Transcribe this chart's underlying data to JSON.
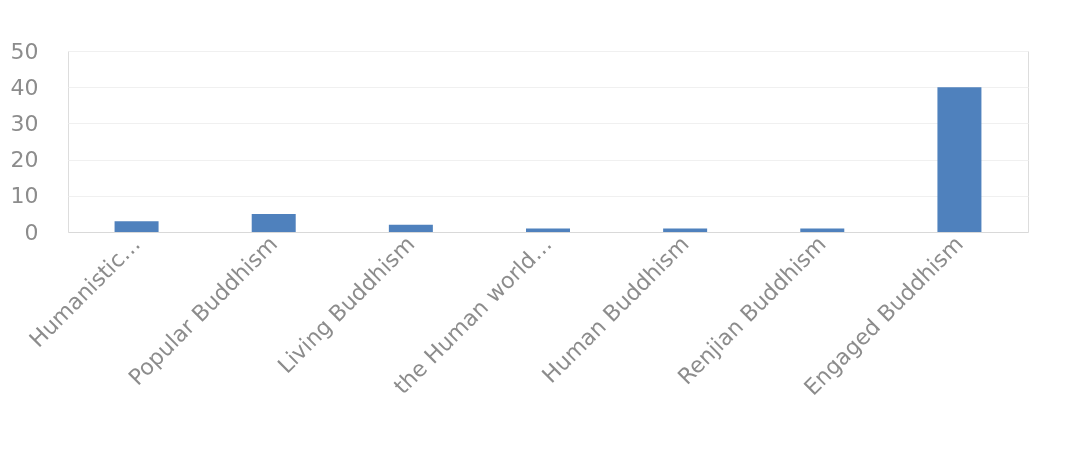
{
  "chart_data": {
    "type": "bar",
    "categories": [
      "Humanistic…",
      "Popular Buddhism",
      "Living Buddhism",
      "the Human world…",
      "Human Buddhism",
      "Renjian Buddhism",
      "Engaged Buddhism"
    ],
    "values": [
      3,
      5,
      2,
      1,
      1,
      1,
      40
    ],
    "color": "#4f81bd",
    "ylim": [
      0,
      50
    ],
    "yticks": [
      0,
      10,
      20,
      30,
      40,
      50
    ],
    "grid": "y"
  }
}
